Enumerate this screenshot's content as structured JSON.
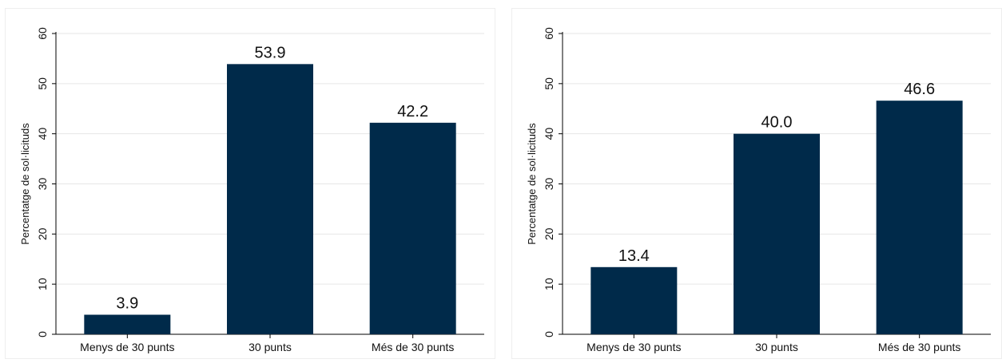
{
  "colors": {
    "bar": "#002a4a",
    "grid": "#e6e6e6",
    "axis": "#000000",
    "text": "#111111"
  },
  "chart_data": [
    {
      "type": "bar",
      "categories": [
        "Menys de 30 punts",
        "30 punts",
        "Més de 30 punts"
      ],
      "values": [
        3.9,
        53.9,
        42.2
      ],
      "labels": [
        "3.9",
        "53.9",
        "42.2"
      ],
      "ylabel": "Percentatge de sol·licituds",
      "xlabel": "",
      "ylim": [
        0,
        60
      ],
      "yticks": [
        "0",
        "10",
        "20",
        "30",
        "40",
        "50",
        "60"
      ],
      "grid": true
    },
    {
      "type": "bar",
      "categories": [
        "Menys de 30 punts",
        "30 punts",
        "Més de 30 punts"
      ],
      "values": [
        13.4,
        40.0,
        46.6
      ],
      "labels": [
        "13.4",
        "40.0",
        "46.6"
      ],
      "ylabel": "Percentatge de sol·licituds",
      "xlabel": "",
      "ylim": [
        0,
        60
      ],
      "yticks": [
        "0",
        "10",
        "20",
        "30",
        "40",
        "50",
        "60"
      ],
      "grid": true
    }
  ]
}
